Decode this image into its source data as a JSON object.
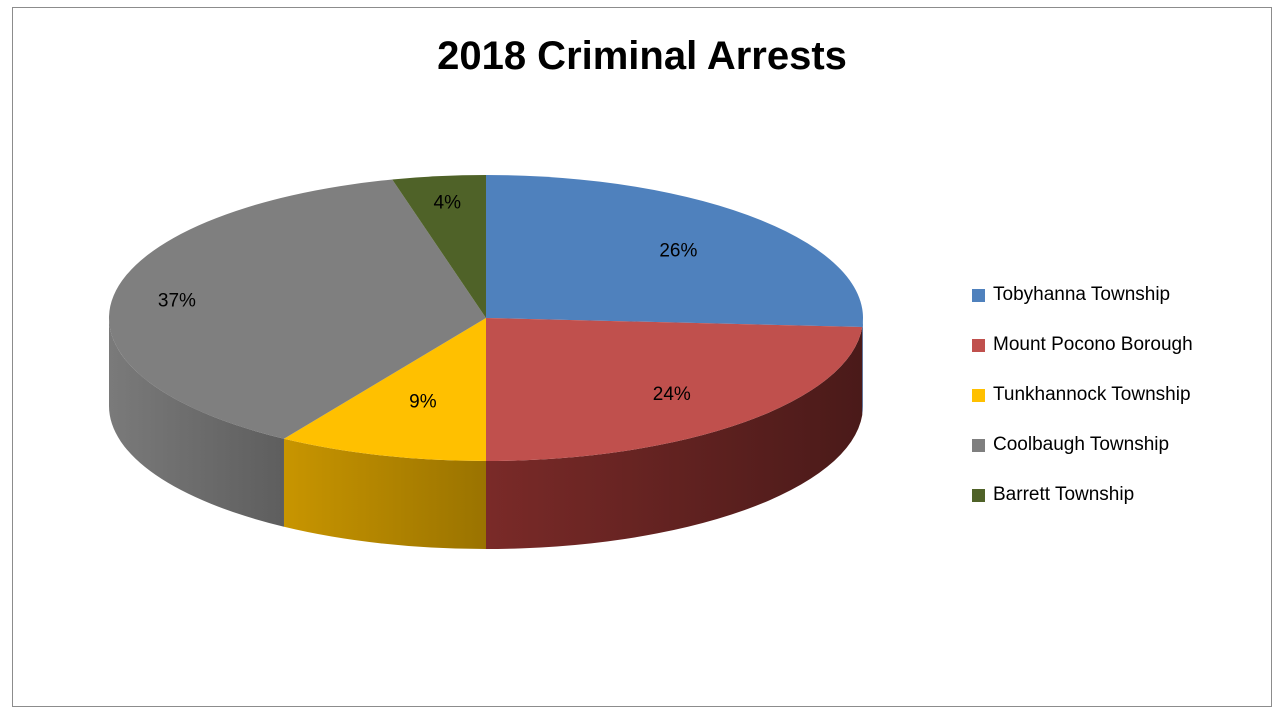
{
  "chart_data": {
    "type": "pie",
    "title": "2018 Criminal Arrests",
    "slices": [
      {
        "label": "Tobyhanna Township",
        "value": 26,
        "value_label": "26%",
        "color": "#4f81bd"
      },
      {
        "label": "Mount Pocono Borough",
        "value": 24,
        "value_label": "24%",
        "color": "#c0504d"
      },
      {
        "label": "Tunkhannock Township",
        "value": 9,
        "value_label": "9%",
        "color": "#ffc000"
      },
      {
        "label": "Coolbaugh Township",
        "value": 37,
        "value_label": "37%",
        "color": "#7f7f7f"
      },
      {
        "label": "Barrett Township",
        "value": 4,
        "value_label": "4%",
        "color": "#4f6228"
      }
    ],
    "legend_position": "right",
    "style": "3d"
  }
}
